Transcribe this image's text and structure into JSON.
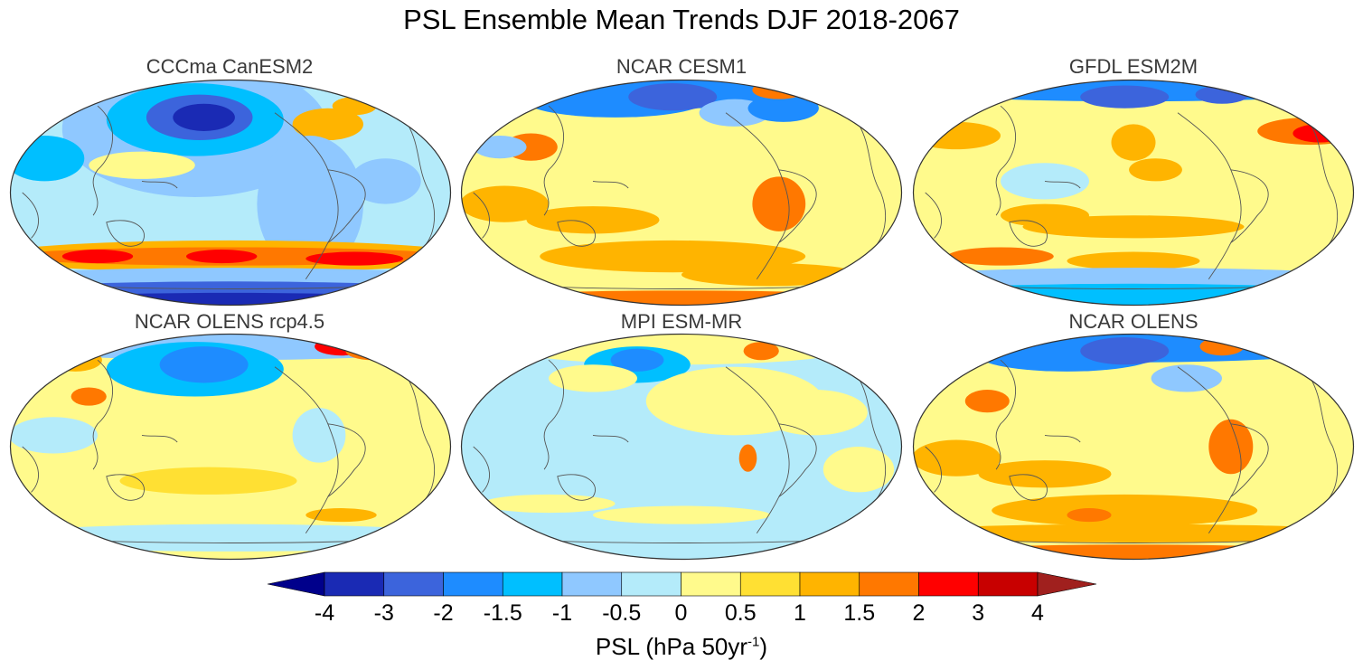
{
  "title": "PSL Ensemble Mean Trends DJF 2018-2067",
  "panels": [
    {
      "title": "CCCma CanESM2",
      "pattern": "canesm2"
    },
    {
      "title": "NCAR CESM1",
      "pattern": "cesm1"
    },
    {
      "title": "GFDL ESM2M",
      "pattern": "gfdl"
    },
    {
      "title": "NCAR OLENS rcp4.5",
      "pattern": "olens45"
    },
    {
      "title": "MPI ESM-MR",
      "pattern": "mpi"
    },
    {
      "title": "NCAR OLENS",
      "pattern": "olens"
    }
  ],
  "colorbar": {
    "levels": [
      "-4",
      "-3",
      "-2",
      "-1.5",
      "-1",
      "-0.5",
      "0",
      "0.5",
      "1",
      "1.5",
      "2",
      "3",
      "4"
    ],
    "colors": [
      "#00008b",
      "#1a2ab4",
      "#3c64dc",
      "#1e8cff",
      "#00bfff",
      "#8fc8ff",
      "#b4ebfa",
      "#fffa8c",
      "#ffe033",
      "#ffb400",
      "#ff7800",
      "#ff0000",
      "#c80000",
      "#a0201e"
    ],
    "label_main": "PSL (hPa 50yr",
    "label_sup": "-1",
    "label_end": ")"
  },
  "colors": {
    "coastline": "#555555",
    "outline": "#333333"
  }
}
